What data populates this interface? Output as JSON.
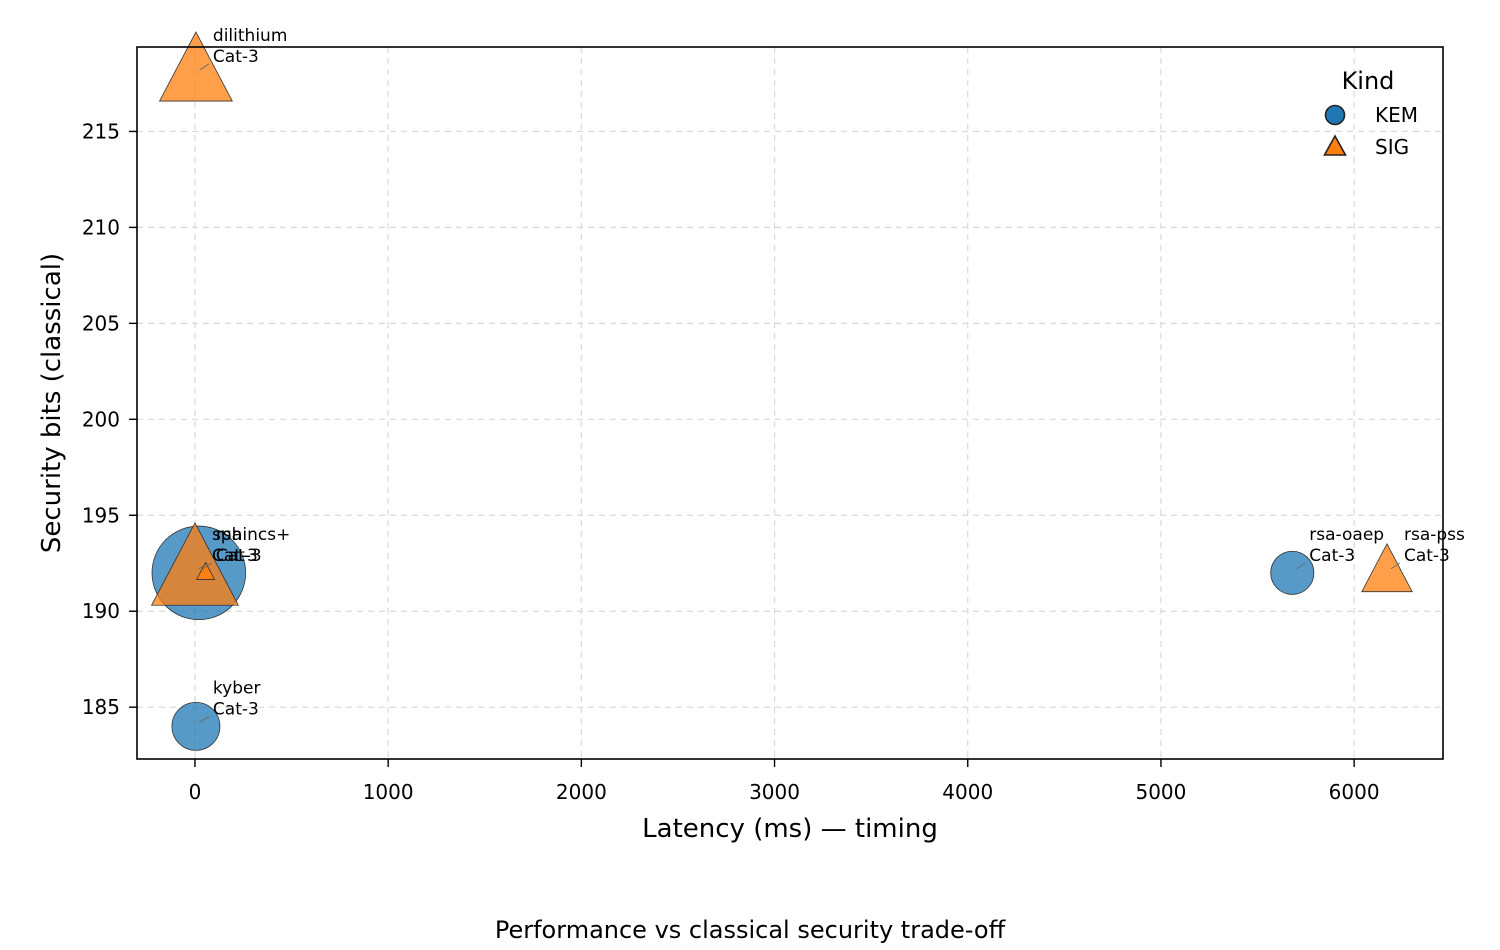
{
  "chart_data": {
    "type": "scatter",
    "title": "",
    "caption": "Performance vs classical security trade-off",
    "xlabel": "Latency (ms) — timing",
    "ylabel": "Security bits (classical)",
    "xlim": [
      -300,
      6460
    ],
    "ylim": [
      182.3,
      219.4
    ],
    "xticks": [
      0,
      1000,
      2000,
      3000,
      4000,
      5000,
      6000
    ],
    "yticks": [
      185,
      190,
      195,
      200,
      205,
      210,
      215
    ],
    "grid": true,
    "legend": {
      "title": "Kind",
      "placement": "top-right",
      "entries": [
        {
          "name": "KEM",
          "marker": "circle",
          "color": "#1f77b4"
        },
        {
          "name": "SIG",
          "marker": "triangle",
          "color": "#ff7f0e"
        }
      ]
    },
    "points": [
      {
        "name": "kyber",
        "category": "Cat-3",
        "kind": "KEM",
        "x": 5,
        "y": 184,
        "size": 1.0
      },
      {
        "name": "rsa",
        "category": "Cat-3",
        "kind": "KEM",
        "x": 20,
        "y": 192,
        "size": 1.95
      },
      {
        "name": "sphincs+",
        "category": "Cat-3",
        "kind": "SIG",
        "x": 0,
        "y": 192,
        "size": 1.55
      },
      {
        "name": "",
        "category": "",
        "kind": "SIG",
        "x": 55,
        "y": 192,
        "size": 0.32
      },
      {
        "name": "dilithium",
        "category": "Cat-3",
        "kind": "SIG",
        "x": 5,
        "y": 218,
        "size": 1.3
      },
      {
        "name": "rsa-oaep",
        "category": "Cat-3",
        "kind": "KEM",
        "x": 5680,
        "y": 192,
        "size": 0.9
      },
      {
        "name": "rsa-pss",
        "category": "Cat-3",
        "kind": "SIG",
        "x": 6170,
        "y": 192,
        "size": 0.9
      }
    ]
  }
}
